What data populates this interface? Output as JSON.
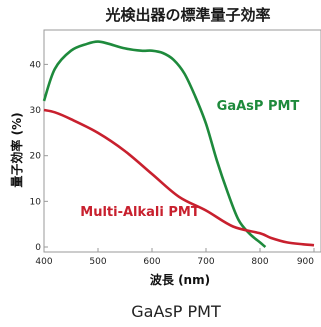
{
  "chart_data": {
    "type": "line",
    "title": "光検出器の標準量子効率",
    "xlabel": "波長 (nm)",
    "ylabel": "量子効率 (%)",
    "caption": "GaAsP PMT",
    "xlim": [
      400,
      900
    ],
    "ylim": [
      0,
      46
    ],
    "x_ticks": [
      "400",
      "500",
      "600",
      "700",
      "800",
      "900"
    ],
    "y_ticks": [
      "0",
      "10",
      "20",
      "30",
      "40"
    ],
    "grid": false,
    "series": [
      {
        "name": "GaAsP PMT",
        "color": "#1e8a3c",
        "x": [
          400,
          420,
          450,
          480,
          500,
          520,
          550,
          580,
          600,
          620,
          640,
          660,
          680,
          700,
          720,
          740,
          760,
          780,
          800,
          810
        ],
        "y": [
          32,
          39,
          43,
          44.5,
          45,
          44.5,
          43.5,
          43,
          43,
          42.5,
          41,
          38,
          33,
          27,
          19,
          12,
          6,
          3,
          1,
          0
        ]
      },
      {
        "name": "Multi-Alkali PMT",
        "color": "#c8202e",
        "x": [
          400,
          420,
          450,
          500,
          550,
          600,
          650,
          700,
          750,
          800,
          820,
          850,
          880,
          900
        ],
        "y": [
          30,
          29.5,
          28,
          25,
          21,
          16,
          11,
          8,
          4.5,
          3,
          2,
          1,
          0.6,
          0.4
        ]
      }
    ]
  }
}
